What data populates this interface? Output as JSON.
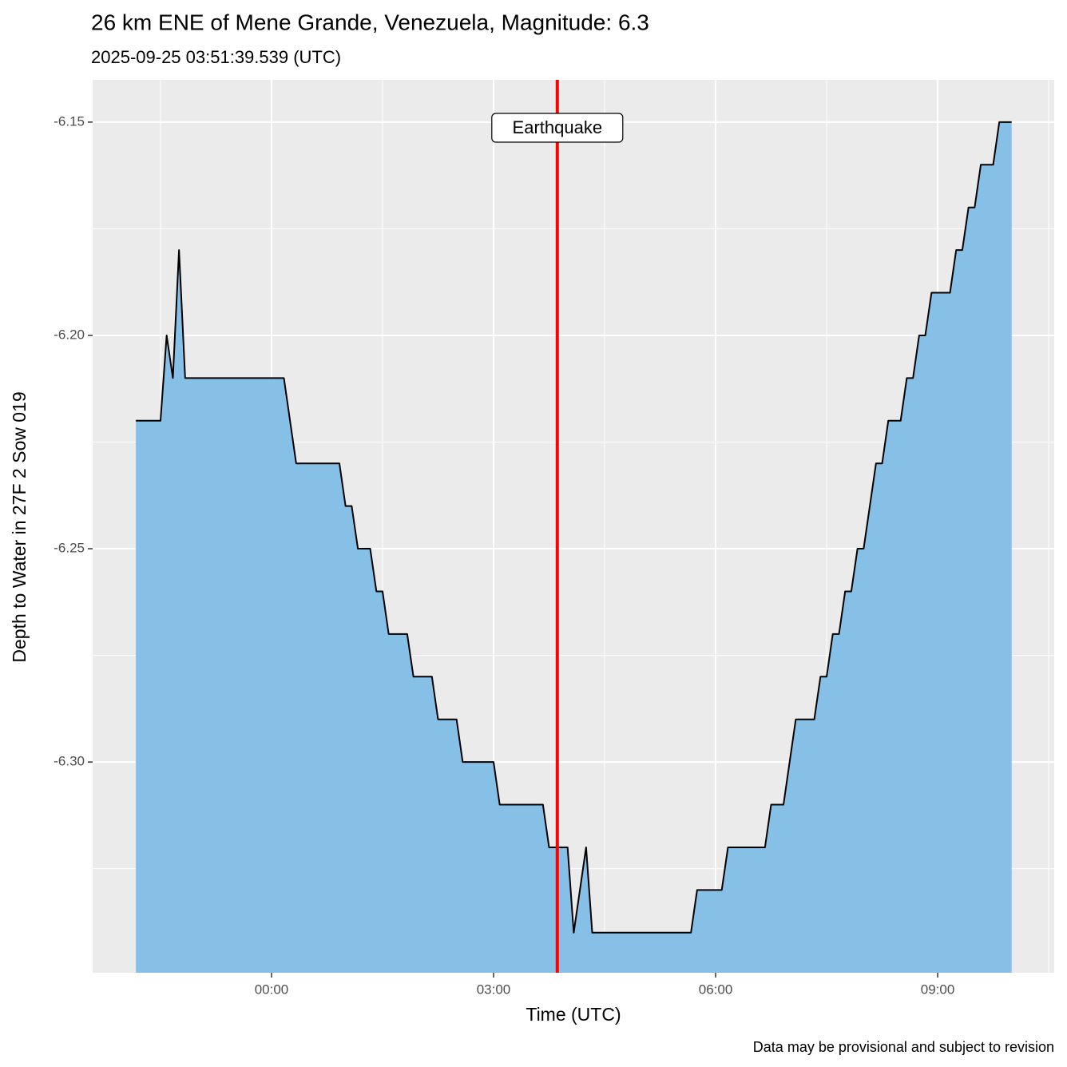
{
  "chart_data": {
    "type": "area",
    "title": "26 km ENE of Mene Grande, Venezuela, Magnitude: 6.3",
    "subtitle": "2025-09-25 03:51:39.539 (UTC)",
    "x_label": "Time (UTC)",
    "y_label": "Depth to Water in 27F 2 Sow 019",
    "caption": "Data may be provisional and subject to revision",
    "event": {
      "x": 3.861,
      "label": "Earthquake",
      "color": "#ff0000"
    },
    "x": [
      -1.833,
      -1.5,
      -1.417,
      -1.333,
      -1.25,
      -1.167,
      0.167,
      0.333,
      0.917,
      1.0,
      1.083,
      1.167,
      1.333,
      1.417,
      1.5,
      1.583,
      1.833,
      1.917,
      2.167,
      2.25,
      2.5,
      2.583,
      3.0,
      3.083,
      3.667,
      3.75,
      4.0,
      4.083,
      4.25,
      4.333,
      5.667,
      5.75,
      6.083,
      6.167,
      6.667,
      6.75,
      6.917,
      7.083,
      7.333,
      7.417,
      7.5,
      7.583,
      7.667,
      7.75,
      7.833,
      7.917,
      8.0,
      8.167,
      8.25,
      8.333,
      8.5,
      8.583,
      8.667,
      8.75,
      8.833,
      8.917,
      9.167,
      9.25,
      9.333,
      9.417,
      9.5,
      9.583,
      9.75,
      9.833,
      10.0
    ],
    "series": [
      {
        "name": "Depth to Water",
        "color": "#000000",
        "fill": "#87c0e6",
        "values": [
          -6.22,
          -6.22,
          -6.2,
          -6.21,
          -6.18,
          -6.21,
          -6.21,
          -6.23,
          -6.23,
          -6.24,
          -6.24,
          -6.25,
          -6.25,
          -6.26,
          -6.26,
          -6.27,
          -6.27,
          -6.28,
          -6.28,
          -6.29,
          -6.29,
          -6.3,
          -6.3,
          -6.31,
          -6.31,
          -6.32,
          -6.32,
          -6.34,
          -6.32,
          -6.34,
          -6.34,
          -6.33,
          -6.33,
          -6.32,
          -6.32,
          -6.31,
          -6.31,
          -6.29,
          -6.29,
          -6.28,
          -6.28,
          -6.27,
          -6.27,
          -6.26,
          -6.26,
          -6.25,
          -6.25,
          -6.23,
          -6.23,
          -6.22,
          -6.22,
          -6.21,
          -6.21,
          -6.2,
          -6.2,
          -6.19,
          -6.19,
          -6.18,
          -6.18,
          -6.17,
          -6.17,
          -6.16,
          -6.16,
          -6.15,
          -6.15
        ]
      }
    ],
    "xlim": [
      -2.417,
      10.575
    ],
    "ylim": [
      -6.3494,
      -6.1401
    ],
    "xticks": [
      {
        "value": 0,
        "label": "00:00"
      },
      {
        "value": 3,
        "label": "03:00"
      },
      {
        "value": 6,
        "label": "06:00"
      },
      {
        "value": 9,
        "label": "09:00"
      }
    ],
    "yticks": [
      -6.15,
      {
        "value": -6.2,
        "label": "-6.20"
      },
      -6.25,
      {
        "value": -6.3,
        "label": "-6.30"
      }
    ],
    "x_minor_ticks": [
      -1.5,
      1.5,
      4.5,
      7.5,
      10.5
    ],
    "y_minor_ticks": [
      -6.175,
      -6.225,
      -6.275,
      -6.325
    ],
    "grid": true
  }
}
